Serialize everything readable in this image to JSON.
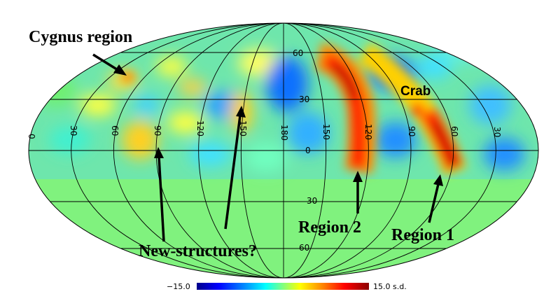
{
  "colors": {
    "background_field": "#80f27e",
    "colormap": [
      "#00008b",
      "#0000ff",
      "#00a0ff",
      "#00ffff",
      "#80ff80",
      "#ffff00",
      "#ff9000",
      "#ff0000",
      "#8b0000"
    ]
  },
  "grid": {
    "latitude_labels": [
      "60",
      "30",
      "0",
      "30",
      "60"
    ],
    "longitude_labels": [
      "0",
      "30",
      "60",
      "90",
      "120",
      "150",
      "180",
      "150",
      "120",
      "90",
      "60",
      "30"
    ]
  },
  "colorbar": {
    "min_label": "−15.0",
    "max_label": "15.0 s.d."
  },
  "annotations": {
    "cygnus": "Cygnus region",
    "crab": "Crab",
    "region2": "Region 2",
    "region1": "Region 1",
    "new_structures": "New-structures?"
  }
}
